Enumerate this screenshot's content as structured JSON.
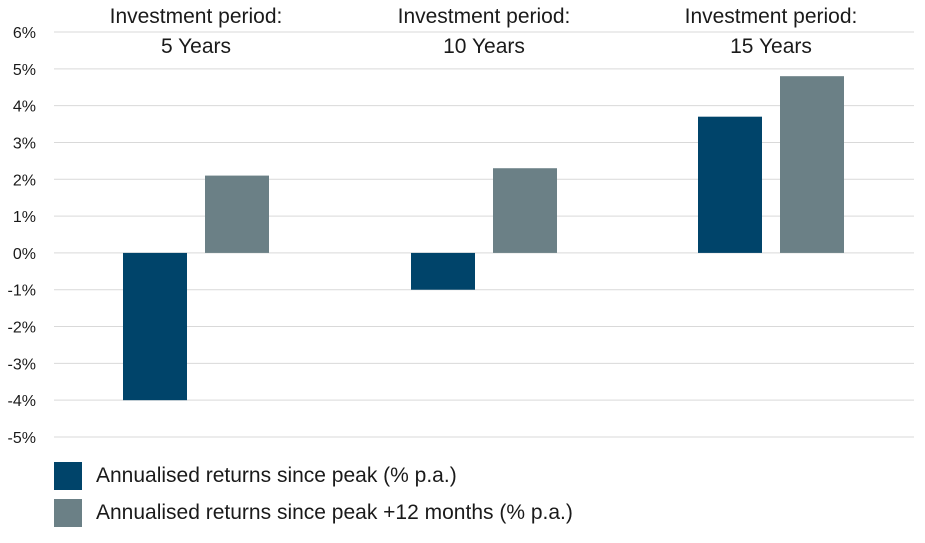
{
  "chart_data": {
    "type": "bar",
    "title": "",
    "xlabel": "",
    "ylabel": "",
    "ylim": [
      -5,
      6
    ],
    "yticks": [
      6,
      5,
      4,
      3,
      2,
      1,
      0,
      -1,
      -2,
      -3,
      -4,
      -5
    ],
    "ytick_labels": [
      "6%",
      "5%",
      "4%",
      "3%",
      "2%",
      "1%",
      "0%",
      "-1%",
      "-2%",
      "-3%",
      "-4%",
      "-5%"
    ],
    "grid": true,
    "legend_position": "bottom-left",
    "categories": [
      {
        "line1": "Investment period:",
        "line2": "5 Years"
      },
      {
        "line1": "Investment period:",
        "line2": "10 Years"
      },
      {
        "line1": "Investment period:",
        "line2": "15 Years"
      }
    ],
    "series": [
      {
        "name": "Annualised returns since peak (% p.a.)",
        "color": "#00446a",
        "values": [
          -4.0,
          -1.0,
          3.7
        ]
      },
      {
        "name": "Annualised returns since peak +12 months (% p.a.)",
        "color": "#6b8086",
        "values": [
          2.1,
          2.3,
          4.8
        ]
      }
    ]
  }
}
